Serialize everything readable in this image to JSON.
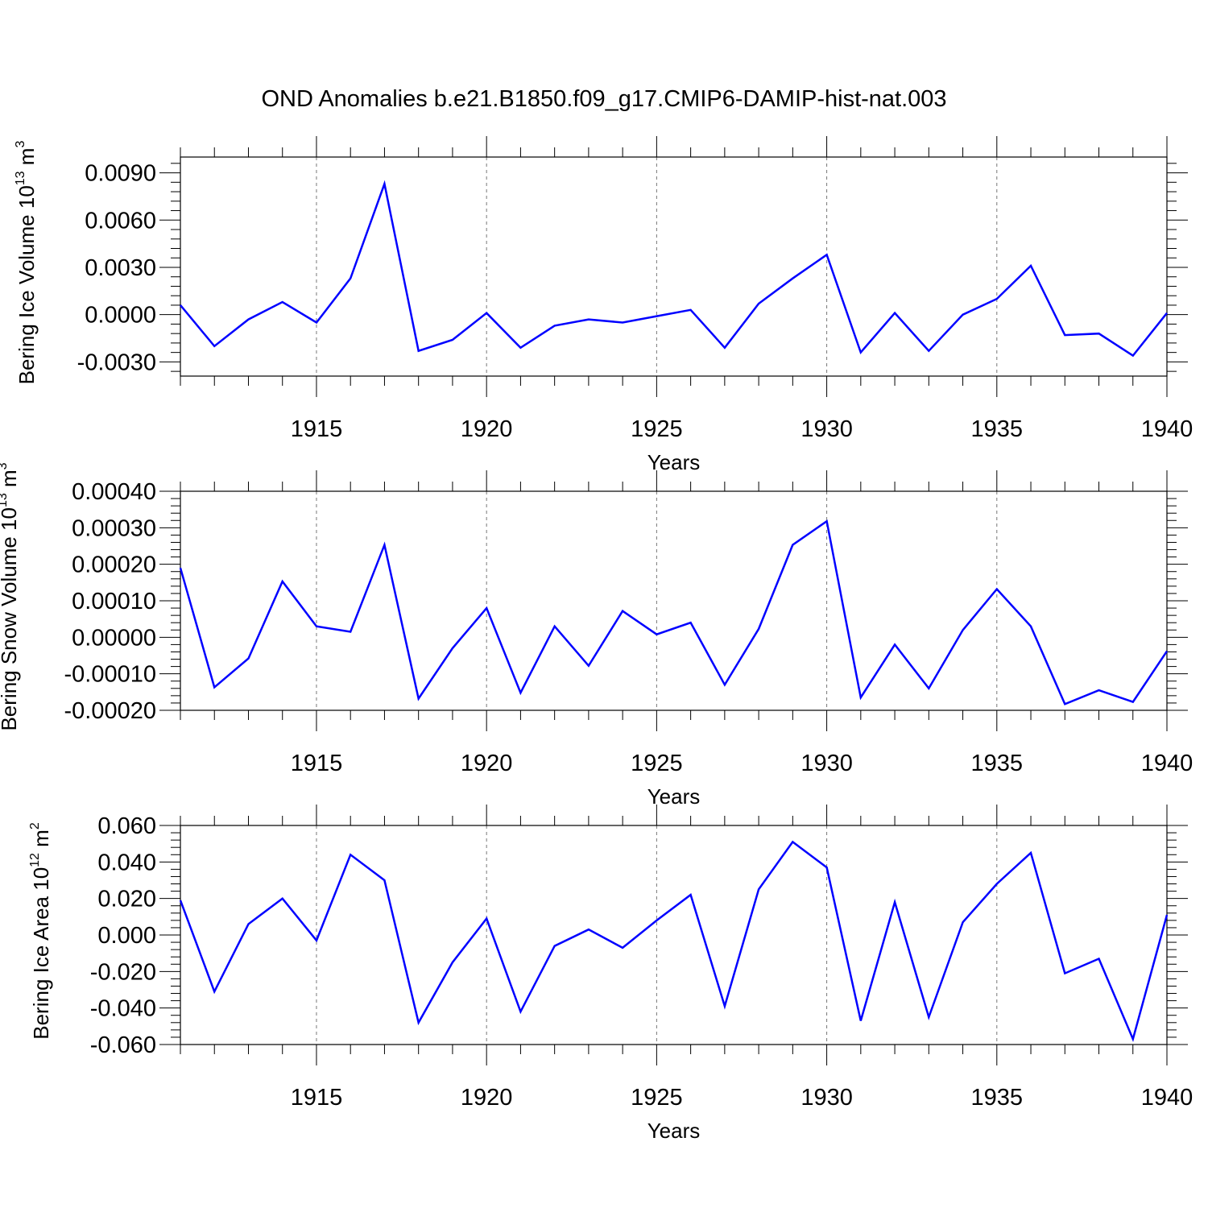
{
  "title": "OND Anomalies b.e21.B1850.f09_g17.CMIP6-DAMIP-hist-nat.003",
  "colors": {
    "line": "#0000ff",
    "axis": "#000000",
    "grid": "#777777"
  },
  "chart_data": [
    {
      "type": "line",
      "panel": "ice-volume",
      "ylabel": {
        "main": "Bering Ice Volume 10",
        "exp1": "13",
        "mid": " m",
        "exp2": "3"
      },
      "xlabel": "Years",
      "xlim": [
        1911,
        1940
      ],
      "ylim": [
        -0.0039,
        0.01
      ],
      "yticks": [
        -0.003,
        0.0,
        0.003,
        0.006,
        0.009
      ],
      "ytick_labels": [
        "-0.0030",
        "0.0000",
        "0.0030",
        "0.0060",
        "0.0090"
      ],
      "xticks": [
        1915,
        1920,
        1925,
        1930,
        1935,
        1940
      ],
      "xtick_labels": [
        "1915",
        "1920",
        "1925",
        "1930",
        "1935",
        "1940"
      ],
      "x": [
        1911,
        1912,
        1913,
        1914,
        1915,
        1916,
        1917,
        1918,
        1919,
        1920,
        1921,
        1922,
        1923,
        1924,
        1925,
        1926,
        1927,
        1928,
        1929,
        1930,
        1931,
        1932,
        1933,
        1934,
        1935,
        1936,
        1937,
        1938,
        1939,
        1940
      ],
      "values": [
        0.0006,
        -0.002,
        -0.0003,
        0.0008,
        -0.0005,
        0.0023,
        0.0083,
        -0.0023,
        -0.0016,
        0.0001,
        -0.0021,
        -0.0007,
        -0.0003,
        -0.0005,
        -0.0001,
        0.0003,
        -0.0021,
        0.0007,
        0.0023,
        0.0038,
        -0.0024,
        0.0001,
        -0.0023,
        0.0,
        0.001,
        0.0031,
        -0.0013,
        -0.0012,
        -0.0026,
        0.0001
      ]
    },
    {
      "type": "line",
      "panel": "snow-volume",
      "ylabel": {
        "main": "Bering Snow Volume 10",
        "exp1": "13",
        "mid": " m",
        "exp2": "3"
      },
      "xlabel": "Years",
      "xlim": [
        1911,
        1940
      ],
      "ylim": [
        -0.0002,
        0.0004
      ],
      "yticks": [
        -0.0002,
        -0.0001,
        0.0,
        0.0001,
        0.0002,
        0.0003,
        0.0004
      ],
      "ytick_labels": [
        "-0.00020",
        "-0.00010",
        "0.00000",
        "0.00010",
        "0.00020",
        "0.00030",
        "0.00040"
      ],
      "xticks": [
        1915,
        1920,
        1925,
        1930,
        1935,
        1940
      ],
      "xtick_labels": [
        "1915",
        "1920",
        "1925",
        "1930",
        "1935",
        "1940"
      ],
      "x": [
        1911,
        1912,
        1913,
        1914,
        1915,
        1916,
        1917,
        1918,
        1919,
        1920,
        1921,
        1922,
        1923,
        1924,
        1925,
        1926,
        1927,
        1928,
        1929,
        1930,
        1931,
        1932,
        1933,
        1934,
        1935,
        1936,
        1937,
        1938,
        1939,
        1940
      ],
      "values": [
        0.00019,
        -0.000137,
        -5.8e-05,
        0.000153,
        3e-05,
        1.5e-05,
        0.000253,
        -0.000168,
        -3e-05,
        8e-05,
        -0.000152,
        3e-05,
        -7.8e-05,
        7.2e-05,
        8e-06,
        4e-05,
        -0.00013,
        2.3e-05,
        0.000253,
        0.000318,
        -0.000165,
        -2e-05,
        -0.00014,
        2e-05,
        0.000132,
        3e-05,
        -0.000183,
        -0.000145,
        -0.000177,
        -3.8e-05
      ]
    },
    {
      "type": "line",
      "panel": "ice-area",
      "ylabel": {
        "main": "Bering Ice Area 10",
        "exp1": "12",
        "mid": " m",
        "exp2": "2"
      },
      "xlabel": "Years",
      "xlim": [
        1911,
        1940
      ],
      "ylim": [
        -0.06,
        0.06
      ],
      "yticks": [
        -0.06,
        -0.04,
        -0.02,
        0.0,
        0.02,
        0.04,
        0.06
      ],
      "ytick_labels": [
        "-0.060",
        "-0.040",
        "-0.020",
        "0.000",
        "0.020",
        "0.040",
        "0.060"
      ],
      "xticks": [
        1915,
        1920,
        1925,
        1930,
        1935,
        1940
      ],
      "xtick_labels": [
        "1915",
        "1920",
        "1925",
        "1930",
        "1935",
        "1940"
      ],
      "x": [
        1911,
        1912,
        1913,
        1914,
        1915,
        1916,
        1917,
        1918,
        1919,
        1920,
        1921,
        1922,
        1923,
        1924,
        1925,
        1926,
        1927,
        1928,
        1929,
        1930,
        1931,
        1932,
        1933,
        1934,
        1935,
        1936,
        1937,
        1938,
        1939,
        1940
      ],
      "values": [
        0.019,
        -0.031,
        0.006,
        0.02,
        -0.003,
        0.044,
        0.03,
        -0.048,
        -0.015,
        0.009,
        -0.042,
        -0.006,
        0.003,
        -0.007,
        0.008,
        0.022,
        -0.039,
        0.025,
        0.051,
        0.037,
        -0.047,
        0.018,
        -0.045,
        0.007,
        0.028,
        0.045,
        -0.021,
        -0.013,
        -0.057,
        0.011
      ]
    }
  ]
}
